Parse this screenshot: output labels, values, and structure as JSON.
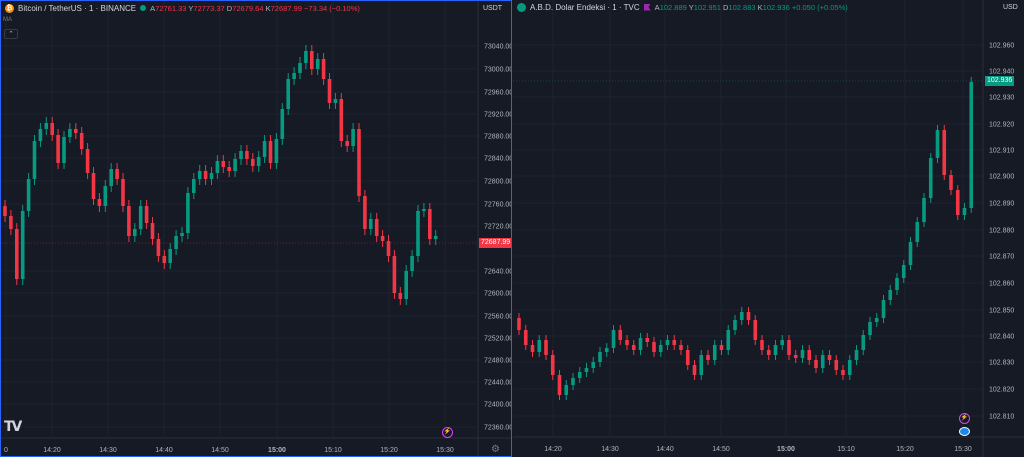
{
  "left": {
    "title": "Bitcoin / TetherUS · 1 · BINANCE",
    "icon": "bitcoin-icon",
    "ohlc": {
      "o_label": "A",
      "o": "72761.33",
      "h_label": "Y",
      "h": "72773.37",
      "l_label": "D",
      "l": "72679.64",
      "c_label": "K",
      "c": "72687.99",
      "change": "−73.34 (−0.10%)"
    },
    "ma_label": "MA",
    "unit": "USDT",
    "last_price": "72687.99",
    "price_ticks": [
      "73040.00",
      "73000.00",
      "72960.00",
      "72920.00",
      "72880.00",
      "72840.00",
      "72800.00",
      "72760.00",
      "72720.00",
      "72640.00",
      "72600.00",
      "72560.00",
      "72520.00",
      "72480.00",
      "72440.00",
      "72400.00",
      "72360.00"
    ],
    "time_ticks": [
      {
        "label": "0",
        "bold": false
      },
      {
        "label": "14:20",
        "bold": false
      },
      {
        "label": "14:30",
        "bold": false
      },
      {
        "label": "14:40",
        "bold": false
      },
      {
        "label": "14:50",
        "bold": false
      },
      {
        "label": "15:00",
        "bold": true
      },
      {
        "label": "15:10",
        "bold": false
      },
      {
        "label": "15:20",
        "bold": false
      },
      {
        "label": "15:30",
        "bold": false
      }
    ],
    "logo": "TV"
  },
  "right": {
    "title": "A.B.D. Dolar Endeksi · 1 · TVC",
    "icon": "dollar-icon",
    "ohlc": {
      "o_label": "A",
      "o": "102.889",
      "h_label": "Y",
      "h": "102.951",
      "l_label": "D",
      "l": "102.883",
      "c_label": "K",
      "c": "102.936",
      "change": "+0.050 (+0.05%)"
    },
    "unit": "USD",
    "last_price": "102.936",
    "price_ticks": [
      "102.960",
      "102.940",
      "102.930",
      "102.920",
      "102.910",
      "102.900",
      "102.890",
      "102.880",
      "102.870",
      "102.860",
      "102.850",
      "102.840",
      "102.830",
      "102.820",
      "102.810"
    ],
    "time_ticks": [
      {
        "label": "14:20",
        "bold": false
      },
      {
        "label": "14:30",
        "bold": false
      },
      {
        "label": "14:40",
        "bold": false
      },
      {
        "label": "14:50",
        "bold": false
      },
      {
        "label": "15:00",
        "bold": true
      },
      {
        "label": "15:10",
        "bold": false
      },
      {
        "label": "15:20",
        "bold": false
      },
      {
        "label": "15:30",
        "bold": false
      }
    ]
  },
  "colors": {
    "up": "#089981",
    "down": "#f23645",
    "grid": "#1f2330",
    "bg": "#161a25",
    "text": "#b2b5be",
    "accent": "#2962ff"
  }
}
